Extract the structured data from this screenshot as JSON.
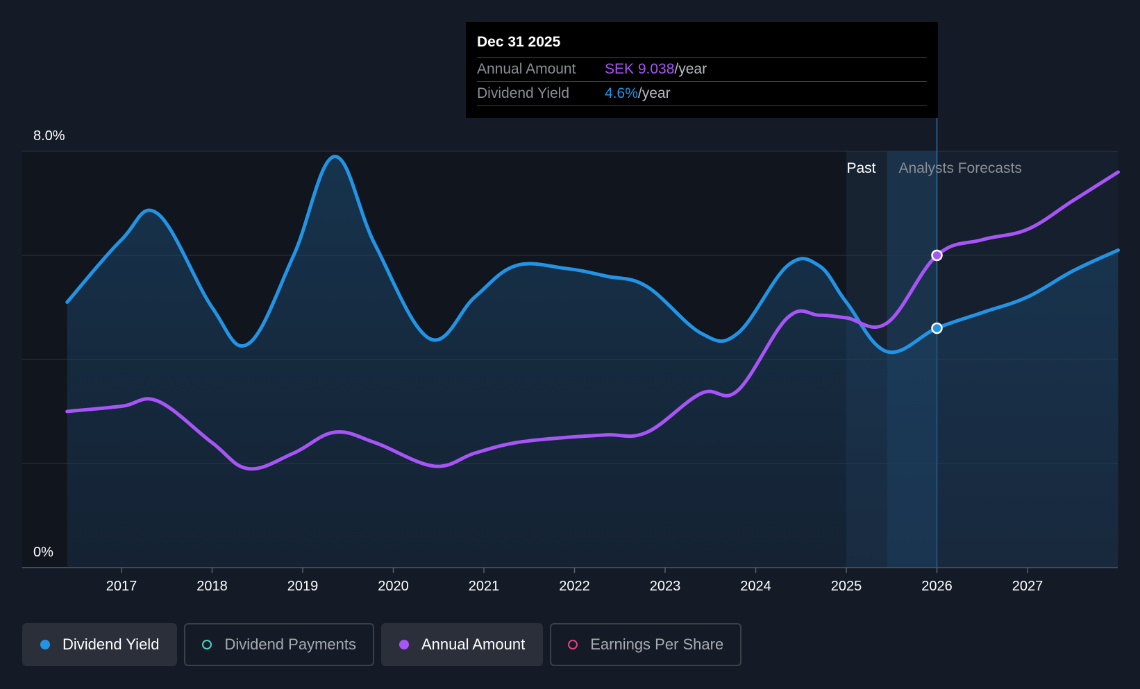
{
  "tooltip": {
    "date": "Dec 31 2025",
    "rows": [
      {
        "label": "Annual Amount",
        "value": "SEK 9.038",
        "unit": "/year",
        "color": "#a855f7"
      },
      {
        "label": "Dividend Yield",
        "value": "4.6%",
        "unit": "/year",
        "color": "#2394e5"
      }
    ]
  },
  "regions": {
    "past_label": "Past",
    "forecast_label": "Analysts Forecasts"
  },
  "legend": [
    {
      "label": "Dividend Yield",
      "color": "#2394e5",
      "active": true,
      "marker": "filled"
    },
    {
      "label": "Dividend Payments",
      "color": "#4fd1c5",
      "active": false,
      "marker": "hollow"
    },
    {
      "label": "Annual Amount",
      "color": "#a855f7",
      "active": true,
      "marker": "filled"
    },
    {
      "label": "Earnings Per Share",
      "color": "#e0457b",
      "active": false,
      "marker": "hollow"
    }
  ],
  "chart_data": {
    "type": "line",
    "title": "",
    "xlabel": "",
    "ylabel": "",
    "xlim": [
      2016.1,
      2028.0
    ],
    "ylim": [
      0,
      8
    ],
    "y_tick_labels": [
      "0%",
      "8.0%"
    ],
    "x_ticks": [
      2017,
      2018,
      2019,
      2020,
      2021,
      2022,
      2023,
      2024,
      2025,
      2026,
      2027
    ],
    "grid": true,
    "legend_position": "bottom-left",
    "past_forecast_split": 2026.0,
    "highlight_start": 2025.0,
    "series": [
      {
        "name": "Dividend Yield",
        "color": "#2394e5",
        "unit": "%",
        "area": true,
        "x": [
          2016.4,
          2017.0,
          2017.4,
          2018.0,
          2018.4,
          2018.9,
          2019.35,
          2019.8,
          2020.4,
          2020.9,
          2021.35,
          2021.9,
          2022.35,
          2022.8,
          2023.4,
          2023.8,
          2024.35,
          2024.7,
          2025.0,
          2025.45,
          2026.0,
          2026.5,
          2027.0,
          2027.5,
          2028.0
        ],
        "y": [
          5.1,
          6.3,
          6.8,
          5.0,
          4.3,
          6.0,
          7.9,
          6.2,
          4.4,
          5.2,
          5.8,
          5.75,
          5.6,
          5.4,
          4.5,
          4.5,
          5.8,
          5.8,
          5.1,
          4.15,
          4.6,
          4.9,
          5.2,
          5.7,
          6.1
        ]
      },
      {
        "name": "Annual Amount",
        "color": "#a855f7",
        "unit": "SEK",
        "area": false,
        "x": [
          2016.4,
          2017.0,
          2017.4,
          2018.0,
          2018.4,
          2018.9,
          2019.35,
          2019.8,
          2020.45,
          2020.9,
          2021.35,
          2021.9,
          2022.35,
          2022.8,
          2023.4,
          2023.8,
          2024.35,
          2024.7,
          2025.0,
          2025.45,
          2026.0,
          2026.5,
          2027.0,
          2027.5,
          2028.0
        ],
        "y": [
          3.0,
          3.1,
          3.2,
          2.4,
          1.9,
          2.2,
          2.6,
          2.4,
          1.95,
          2.2,
          2.4,
          2.5,
          2.55,
          2.6,
          3.35,
          3.4,
          4.8,
          4.85,
          4.8,
          4.7,
          6.0,
          6.3,
          6.5,
          7.05,
          7.6
        ]
      }
    ],
    "highlighted_point": {
      "x": 2026.0,
      "Dividend Yield": 4.6,
      "Annual Amount": 6.0
    }
  }
}
